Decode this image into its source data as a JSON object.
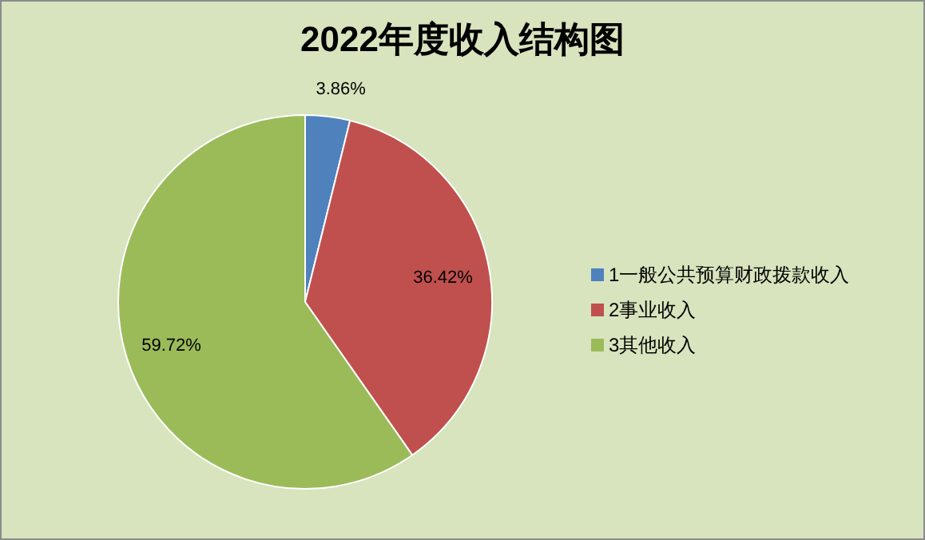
{
  "chart_data": {
    "type": "pie",
    "title": "2022年度收入结构图",
    "categories": [
      "1一般公共预算财政拨款收入",
      "2事业收入",
      "3其他收入"
    ],
    "values": [
      3.86,
      36.42,
      59.72
    ],
    "colors": [
      "#4f81bd",
      "#c0504d",
      "#9bbb59"
    ],
    "value_labels": [
      "3.86%",
      "36.42%",
      "59.72%"
    ],
    "legend": "right"
  }
}
